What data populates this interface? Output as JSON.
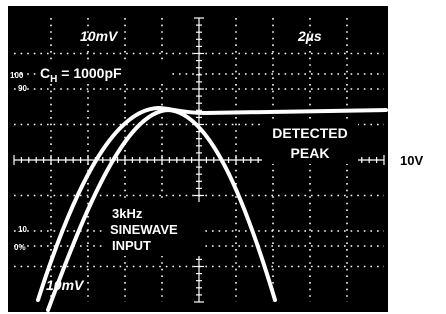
{
  "screen": {
    "top_left_label": "10mV",
    "top_right_label": "2µs",
    "scale_100": "100",
    "scale_90": "90",
    "scale_10": "10",
    "scale_0": "0%",
    "capacitor": {
      "symbol": "C",
      "subscript": "H",
      "value": " = 1000pF"
    },
    "detected_label": [
      "DETECTED",
      "PEAK"
    ],
    "input_label": [
      "3kHz",
      "SINEWAVE",
      "INPUT"
    ],
    "bottom_left_label": "10mV"
  },
  "side_label": "10V"
}
